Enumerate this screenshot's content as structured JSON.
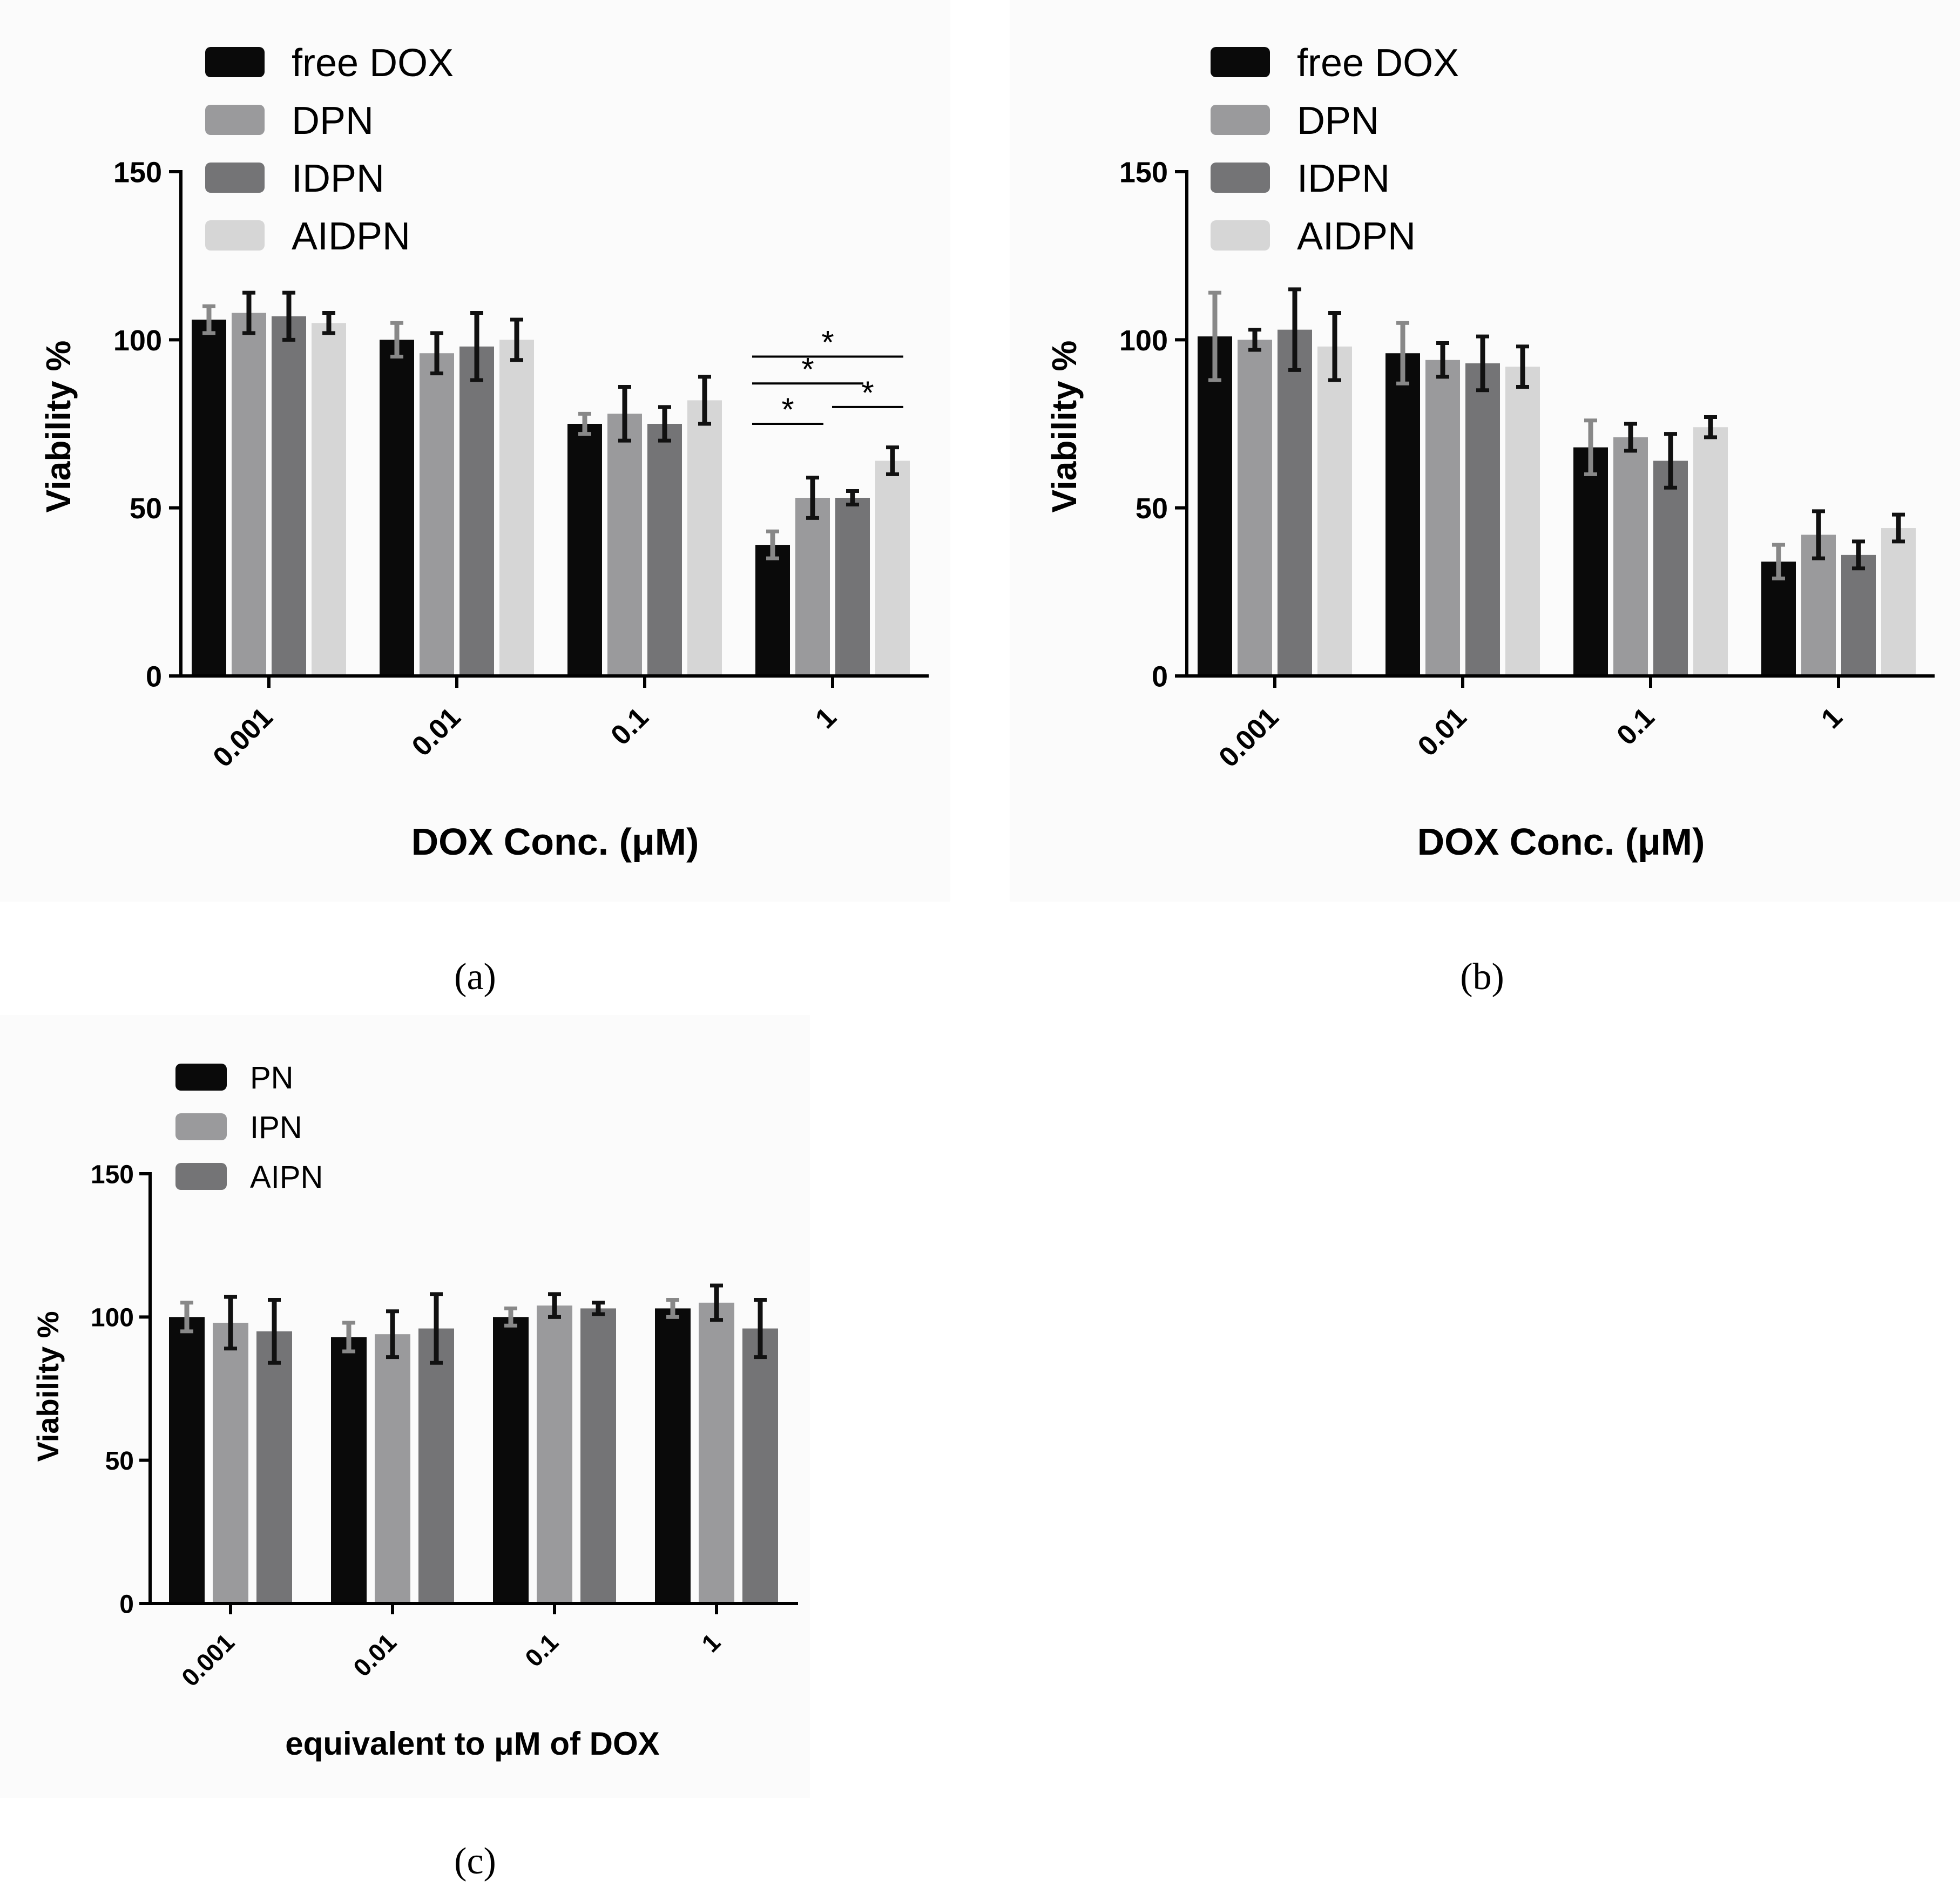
{
  "chart_data": [
    {
      "id": "a",
      "panel_label": "(a)",
      "type": "bar",
      "categories": [
        "0.001",
        "0.01",
        "0.1",
        "1"
      ],
      "xlabel": "DOX Conc. (μM)",
      "ylabel": "Viability %",
      "ylim": [
        0,
        150
      ],
      "yticks": [
        "0",
        "50",
        "100",
        "150"
      ],
      "legend_position": "top-left",
      "series": [
        {
          "name": "free DOX",
          "color": "#0a0a0a",
          "err_color": "#888888",
          "values": [
            106,
            100,
            75,
            39
          ],
          "errors": [
            4,
            5,
            3,
            4
          ]
        },
        {
          "name": "DPN",
          "color": "#9a9a9c",
          "err_color": "#111111",
          "values": [
            108,
            96,
            78,
            53
          ],
          "errors": [
            6,
            6,
            8,
            6
          ]
        },
        {
          "name": "IDPN",
          "color": "#747476",
          "err_color": "#111111",
          "values": [
            107,
            98,
            75,
            53
          ],
          "errors": [
            7,
            10,
            5,
            2
          ]
        },
        {
          "name": "AIDPN",
          "color": "#d6d6d6",
          "err_color": "#111111",
          "values": [
            105,
            100,
            82,
            64
          ],
          "errors": [
            3,
            6,
            7,
            4
          ]
        }
      ],
      "significance": [
        {
          "from_series": 0,
          "to_series": 3,
          "category": 3,
          "label": "*",
          "level": 95
        },
        {
          "from_series": 0,
          "to_series": 2,
          "category": 3,
          "label": "*",
          "level": 87
        },
        {
          "from_series": 0,
          "to_series": 1,
          "category": 3,
          "label": "*",
          "level": 75
        },
        {
          "from_series": 2,
          "to_series": 3,
          "category": 3,
          "label": "*",
          "level": 80
        }
      ]
    },
    {
      "id": "b",
      "panel_label": "(b)",
      "type": "bar",
      "categories": [
        "0.001",
        "0.01",
        "0.1",
        "1"
      ],
      "xlabel": "DOX Conc. (μM)",
      "ylabel": "Viability %",
      "ylim": [
        0,
        150
      ],
      "yticks": [
        "0",
        "50",
        "100",
        "150"
      ],
      "legend_position": "top-left",
      "series": [
        {
          "name": "free DOX",
          "color": "#0a0a0a",
          "err_color": "#888888",
          "values": [
            101,
            96,
            68,
            34
          ],
          "errors": [
            13,
            9,
            8,
            5
          ]
        },
        {
          "name": "DPN",
          "color": "#9a9a9c",
          "err_color": "#111111",
          "values": [
            100,
            94,
            71,
            42
          ],
          "errors": [
            3,
            5,
            4,
            7
          ]
        },
        {
          "name": "IDPN",
          "color": "#747476",
          "err_color": "#111111",
          "values": [
            103,
            93,
            64,
            36
          ],
          "errors": [
            12,
            8,
            8,
            4
          ]
        },
        {
          "name": "AIDPN",
          "color": "#d6d6d6",
          "err_color": "#111111",
          "values": [
            98,
            92,
            74,
            44
          ],
          "errors": [
            10,
            6,
            3,
            4
          ]
        }
      ],
      "significance": []
    },
    {
      "id": "c",
      "panel_label": "(c)",
      "type": "bar",
      "categories": [
        "0.001",
        "0.01",
        "0.1",
        "1"
      ],
      "xlabel": "equivalent to μM of DOX",
      "ylabel": "Viability %",
      "ylim": [
        0,
        150
      ],
      "yticks": [
        "0",
        "50",
        "100",
        "150"
      ],
      "legend_position": "top-left",
      "series": [
        {
          "name": "PN",
          "color": "#0a0a0a",
          "err_color": "#888888",
          "values": [
            100,
            93,
            100,
            103
          ],
          "errors": [
            5,
            5,
            3,
            3
          ]
        },
        {
          "name": "IPN",
          "color": "#9a9a9c",
          "err_color": "#111111",
          "values": [
            98,
            94,
            104,
            105
          ],
          "errors": [
            9,
            8,
            4,
            6
          ]
        },
        {
          "name": "AIPN",
          "color": "#747476",
          "err_color": "#111111",
          "values": [
            95,
            96,
            103,
            96
          ],
          "errors": [
            11,
            12,
            2,
            10
          ]
        }
      ],
      "significance": []
    }
  ]
}
